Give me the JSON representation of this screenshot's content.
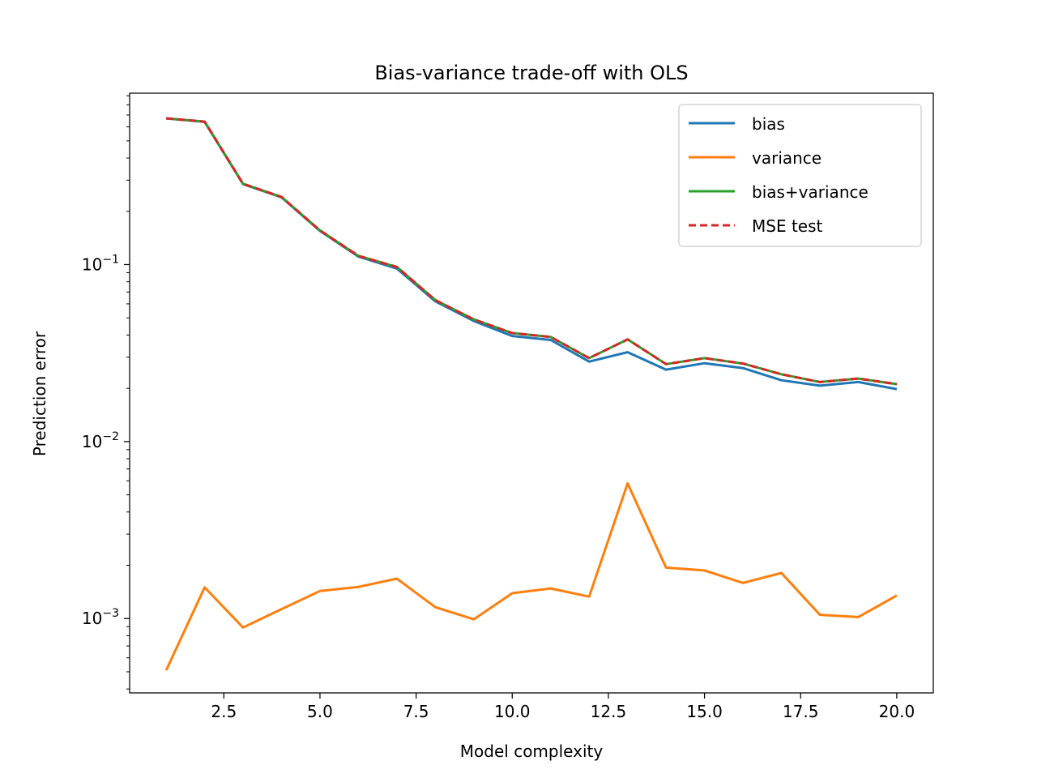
{
  "chart_data": {
    "type": "line",
    "title": "Bias-variance trade-off with OLS",
    "xlabel": "Model complexity",
    "ylabel": "Prediction error",
    "yscale": "log",
    "xlim": [
      0.05,
      20.95
    ],
    "ylim": [
      0.00038,
      0.93
    ],
    "grid": false,
    "legend_position": "top-right",
    "x": [
      1,
      2,
      3,
      4,
      5,
      6,
      7,
      8,
      9,
      10,
      11,
      12,
      13,
      14,
      15,
      16,
      17,
      18,
      19,
      20
    ],
    "x_ticks": [
      "2.5",
      "5.0",
      "7.5",
      "10.0",
      "12.5",
      "15.0",
      "17.5",
      "20.0"
    ],
    "x_tick_values": [
      2.5,
      5.0,
      7.5,
      10.0,
      12.5,
      15.0,
      17.5,
      20.0
    ],
    "y_ticks": [
      {
        "value": 0.1,
        "base": "10",
        "exp": "−1"
      },
      {
        "value": 0.01,
        "base": "10",
        "exp": "−2"
      },
      {
        "value": 0.001,
        "base": "10",
        "exp": "−3"
      }
    ],
    "series": [
      {
        "name": "bias",
        "color": "#1f77b4",
        "dash": "",
        "values": [
          0.67,
          0.64,
          0.285,
          0.24,
          0.155,
          0.111,
          0.095,
          0.062,
          0.048,
          0.0395,
          0.0375,
          0.0283,
          0.032,
          0.0255,
          0.0277,
          0.026,
          0.0222,
          0.0207,
          0.0217,
          0.0198
        ]
      },
      {
        "name": "variance",
        "color": "#ff7f0e",
        "dash": "",
        "values": [
          0.00051,
          0.0015,
          0.00089,
          0.00113,
          0.00143,
          0.00151,
          0.00168,
          0.00116,
          0.00099,
          0.00139,
          0.00148,
          0.00133,
          0.0058,
          0.00194,
          0.00187,
          0.00159,
          0.00181,
          0.00105,
          0.00102,
          0.00135
        ]
      },
      {
        "name": "bias+variance",
        "color": "#2ca02c",
        "dash": "",
        "values": [
          0.671,
          0.642,
          0.286,
          0.241,
          0.156,
          0.112,
          0.097,
          0.063,
          0.049,
          0.041,
          0.039,
          0.0296,
          0.0378,
          0.0274,
          0.0296,
          0.0276,
          0.024,
          0.0217,
          0.0227,
          0.0211
        ]
      },
      {
        "name": "MSE test",
        "color": "#d62728",
        "dash": "9,5",
        "values": [
          0.671,
          0.642,
          0.286,
          0.241,
          0.156,
          0.112,
          0.097,
          0.063,
          0.049,
          0.041,
          0.039,
          0.0296,
          0.0378,
          0.0274,
          0.0296,
          0.0276,
          0.024,
          0.0217,
          0.0227,
          0.0211
        ]
      }
    ]
  }
}
